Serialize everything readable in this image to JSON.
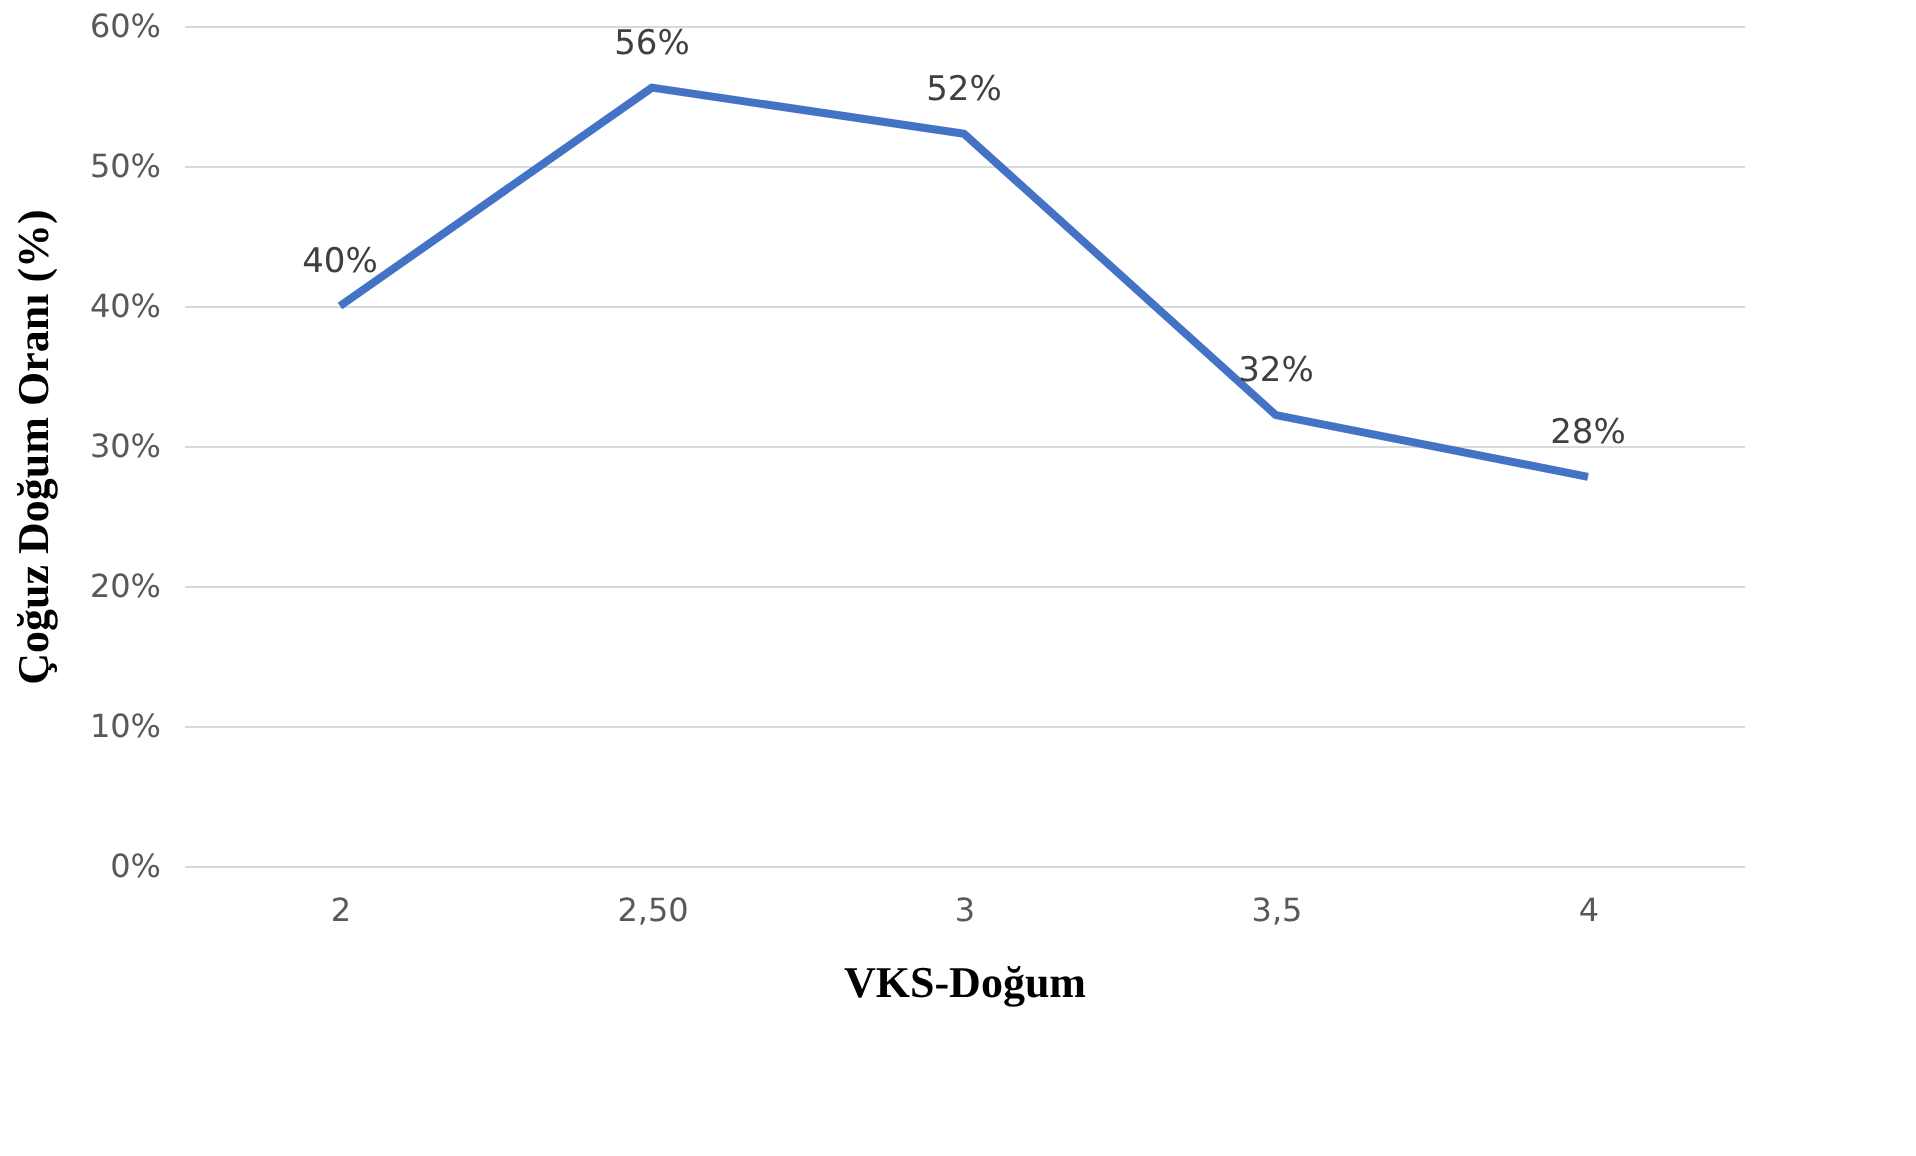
{
  "chart_data": {
    "type": "line",
    "xlabel": "VKS-Doğum",
    "ylabel": "Çoğuz Doğum Oranı (%)",
    "categories": [
      "2",
      "2,50",
      "3",
      "3,5",
      "4"
    ],
    "series": [
      {
        "color": "#4472c4",
        "values": [
          40,
          55.6,
          52.3,
          32.2,
          27.8
        ],
        "value_labels": [
          "40%",
          "56%",
          "52%",
          "32%",
          "28%"
        ]
      }
    ],
    "ylim": [
      0,
      60
    ],
    "yticks": [
      {
        "value": 0,
        "label": "0%"
      },
      {
        "value": 10,
        "label": "10%"
      },
      {
        "value": 20,
        "label": "20%"
      },
      {
        "value": 30,
        "label": "30%"
      },
      {
        "value": 40,
        "label": "40%"
      },
      {
        "value": 50,
        "label": "50%"
      },
      {
        "value": 60,
        "label": "60%"
      }
    ],
    "grid": "y",
    "marker": "none",
    "line_style": "solid"
  }
}
